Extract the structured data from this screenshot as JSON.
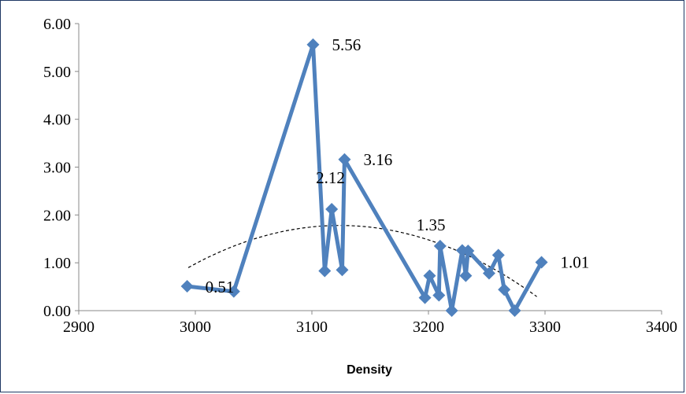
{
  "chart_data": {
    "type": "line",
    "title": "",
    "xlabel": "Density",
    "ylabel": "",
    "xlim": [
      2900,
      3400
    ],
    "ylim": [
      0,
      6
    ],
    "x_ticks": [
      "2900",
      "3000",
      "3100",
      "3200",
      "3300",
      "3400"
    ],
    "y_ticks": [
      "0.00",
      "1.00",
      "2.00",
      "3.00",
      "4.00",
      "5.00",
      "6.00"
    ],
    "grid": false,
    "legend": "none",
    "series": [
      {
        "color": "#4f81bd",
        "marker": "diamond",
        "points": [
          {
            "x": 2993,
            "y": 0.51,
            "label": "0.51"
          },
          {
            "x": 3033,
            "y": 0.4
          },
          {
            "x": 3101,
            "y": 5.56,
            "label": "5.56"
          },
          {
            "x": 3111,
            "y": 0.83
          },
          {
            "x": 3117,
            "y": 2.12,
            "label": "2.12"
          },
          {
            "x": 3126,
            "y": 0.85
          },
          {
            "x": 3128,
            "y": 3.16,
            "label": "3.16"
          },
          {
            "x": 3197,
            "y": 0.27
          },
          {
            "x": 3201,
            "y": 0.73
          },
          {
            "x": 3209,
            "y": 0.32
          },
          {
            "x": 3210,
            "y": 1.35,
            "label": "1.35"
          },
          {
            "x": 3220,
            "y": 0.0
          },
          {
            "x": 3229,
            "y": 1.26
          },
          {
            "x": 3232,
            "y": 0.73
          },
          {
            "x": 3234,
            "y": 1.25
          },
          {
            "x": 3252,
            "y": 0.78
          },
          {
            "x": 3260,
            "y": 1.16
          },
          {
            "x": 3265,
            "y": 0.44
          },
          {
            "x": 3274,
            "y": 0.0
          },
          {
            "x": 3297,
            "y": 1.01,
            "label": "1.01"
          }
        ]
      }
    ],
    "trendline": {
      "type": "polynomial",
      "style": "dashed",
      "color": "#000000",
      "x_range": [
        2994,
        3293
      ],
      "y_start": 0.9,
      "peak_x": 3124,
      "peak_y": 1.78
    }
  }
}
